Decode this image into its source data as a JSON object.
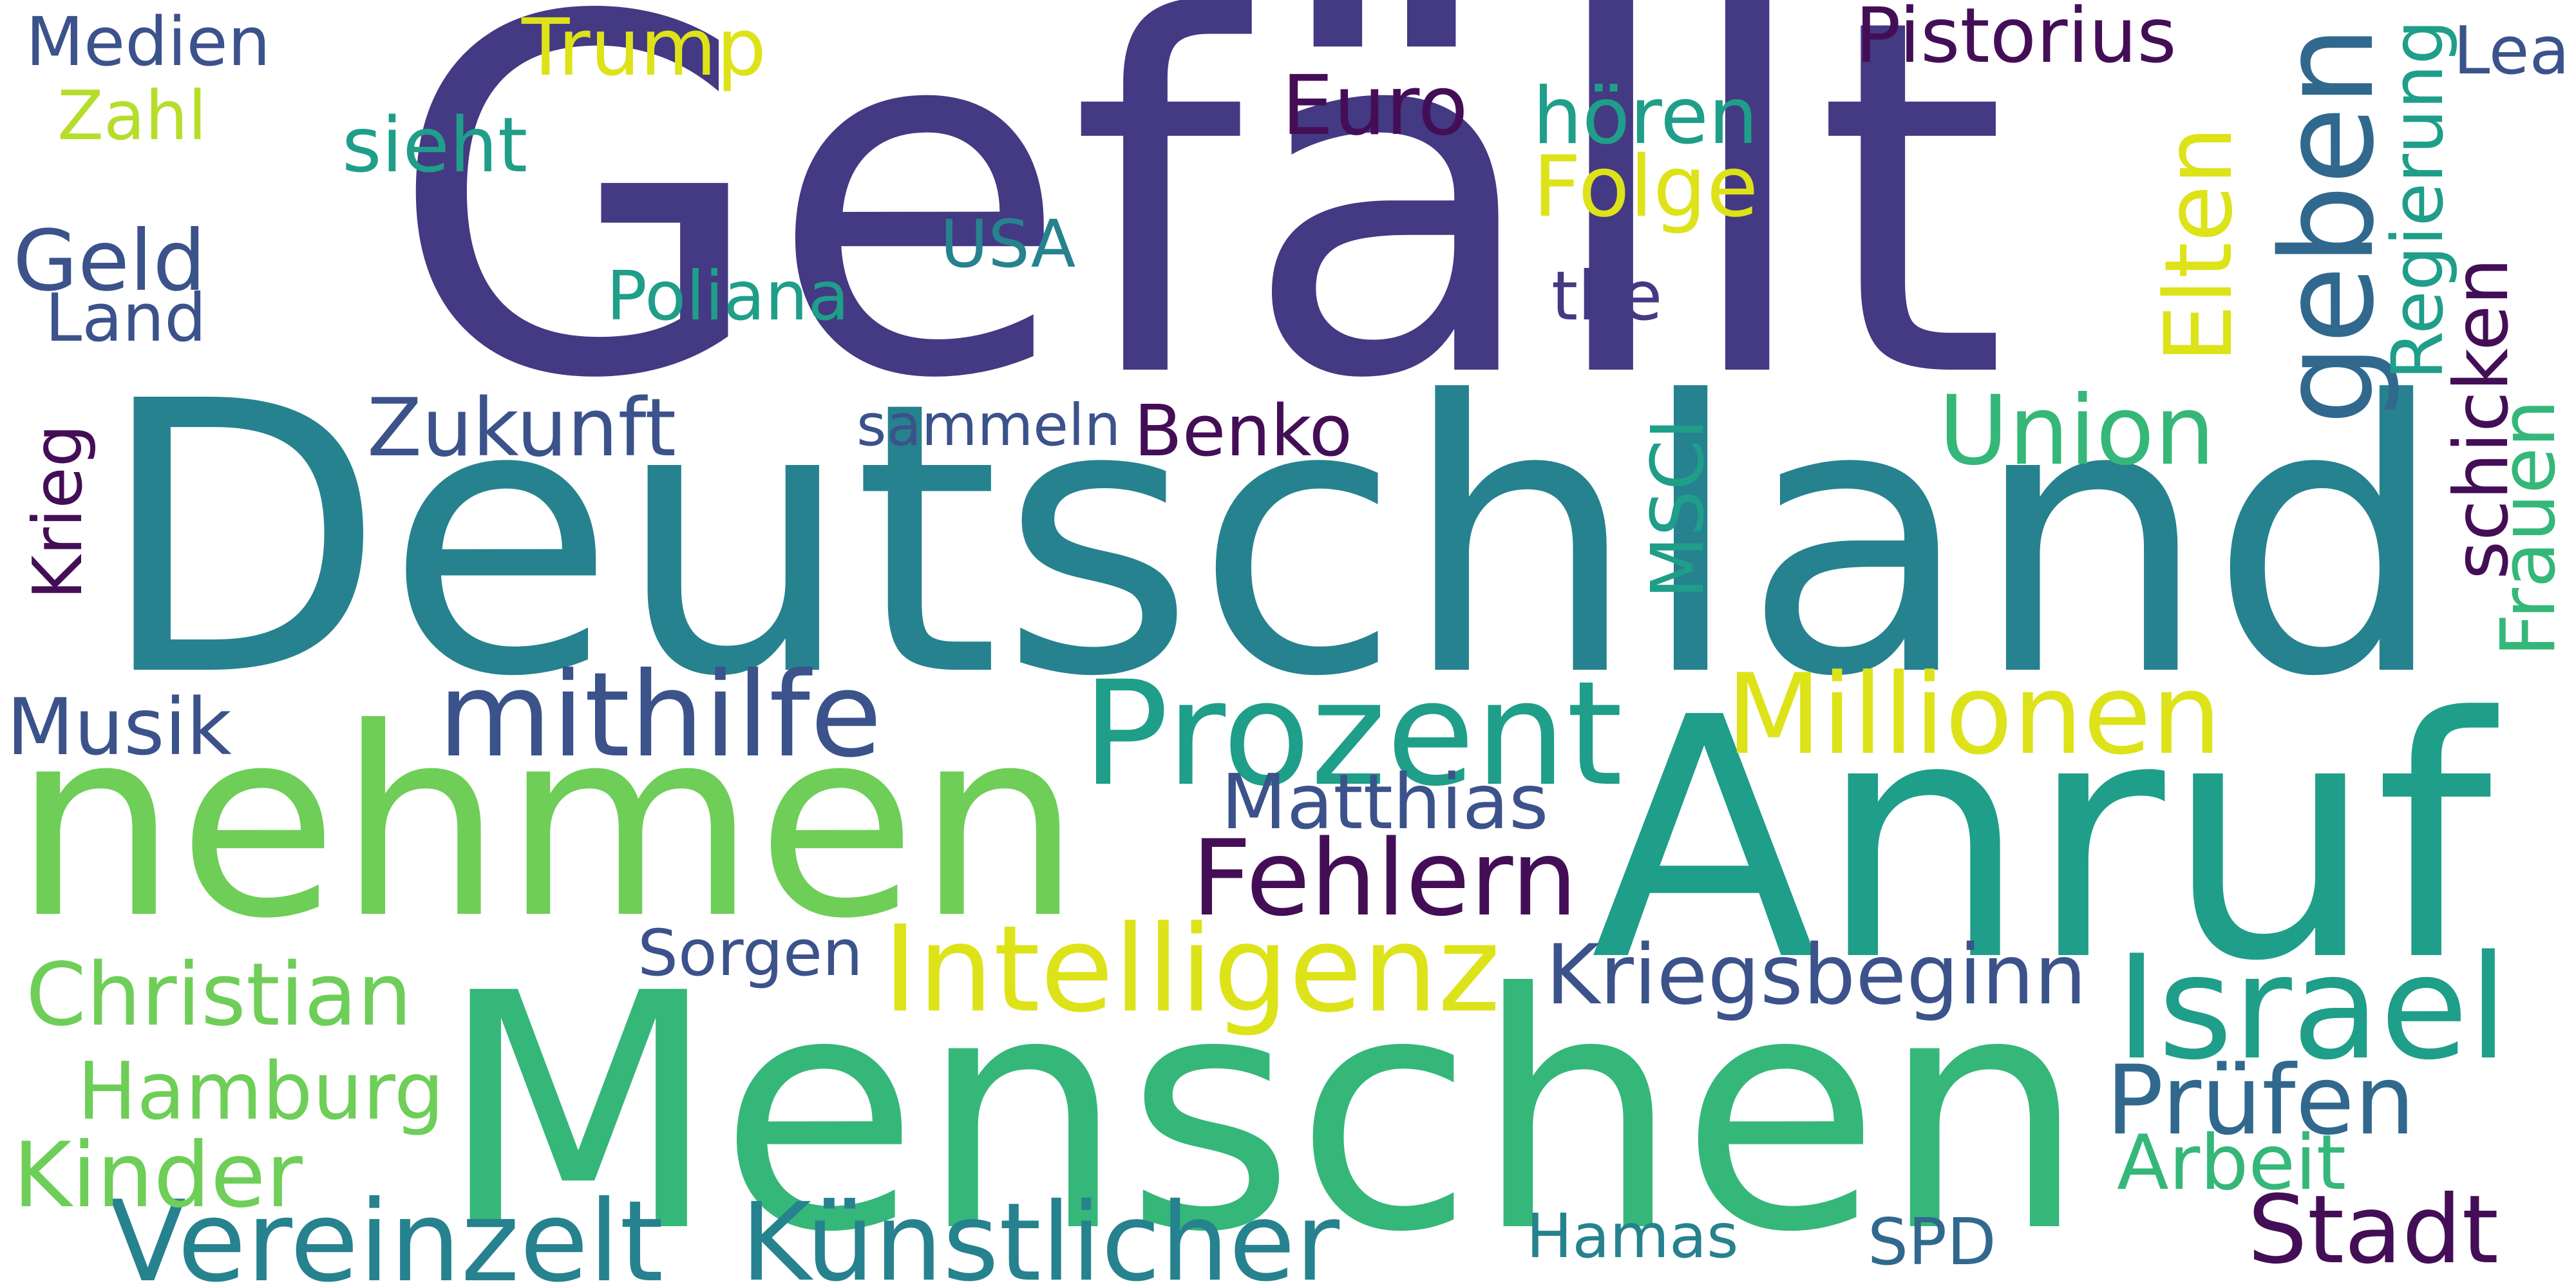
{
  "colors": {
    "background": "#ffffff",
    "purple": "#443983",
    "darkpurple": "#440e57",
    "indigo": "#3b528b",
    "blue": "#31688e",
    "teal": "#26828e",
    "sea": "#1f9e89",
    "green": "#35b779",
    "lightgreen": "#6ece58",
    "lime": "#b5de2b",
    "yellow": "#dde318"
  },
  "words": [
    {
      "text": "Gefällt",
      "weight": 1.0,
      "color": "purple"
    },
    {
      "text": "Deutschland",
      "weight": 0.93,
      "color": "teal"
    },
    {
      "text": "nehmen",
      "weight": 0.76,
      "color": "lightgreen"
    },
    {
      "text": "Menschen",
      "weight": 0.74,
      "color": "green"
    },
    {
      "text": "Anruf",
      "weight": 0.72,
      "color": "sea"
    },
    {
      "text": "geben",
      "weight": 0.4,
      "color": "blue"
    },
    {
      "text": "Prozent",
      "weight": 0.38,
      "color": "sea"
    },
    {
      "text": "Israel",
      "weight": 0.33,
      "color": "sea"
    },
    {
      "text": "Intelligenz",
      "weight": 0.3,
      "color": "yellow"
    },
    {
      "text": "Künstlicher",
      "weight": 0.29,
      "color": "teal"
    },
    {
      "text": "Vereinzelt",
      "weight": 0.29,
      "color": "teal"
    },
    {
      "text": "Millionen",
      "weight": 0.28,
      "color": "yellow"
    },
    {
      "text": "mithilfe",
      "weight": 0.27,
      "color": "indigo"
    },
    {
      "text": "Union",
      "weight": 0.27,
      "color": "green"
    },
    {
      "text": "Fehlern",
      "weight": 0.26,
      "color": "darkpurple"
    },
    {
      "text": "Stadt",
      "weight": 0.26,
      "color": "darkpurple"
    },
    {
      "text": "Hamburg",
      "weight": 0.24,
      "color": "lightgreen"
    },
    {
      "text": "Prüfen",
      "weight": 0.23,
      "color": "blue"
    },
    {
      "text": "Elten",
      "weight": 0.22,
      "color": "yellow"
    },
    {
      "text": "Kinder",
      "weight": 0.21,
      "color": "lightgreen"
    },
    {
      "text": "Kriegsbeginn",
      "weight": 0.21,
      "color": "indigo"
    },
    {
      "text": "Trump",
      "weight": 0.21,
      "color": "yellow"
    },
    {
      "text": "Zukunft",
      "weight": 0.2,
      "color": "indigo"
    },
    {
      "text": "Geld",
      "weight": 0.2,
      "color": "indigo"
    },
    {
      "text": "Euro",
      "weight": 0.2,
      "color": "darkpurple"
    },
    {
      "text": "Christian",
      "weight": 0.19,
      "color": "lightgreen"
    },
    {
      "text": "Benko",
      "weight": 0.19,
      "color": "darkpurple"
    },
    {
      "text": "hören",
      "weight": 0.19,
      "color": "sea"
    },
    {
      "text": "Folge",
      "weight": 0.19,
      "color": "yellow"
    },
    {
      "text": "Musik",
      "weight": 0.19,
      "color": "indigo"
    },
    {
      "text": "USA",
      "weight": 0.19,
      "color": "teal"
    },
    {
      "text": "Hamas",
      "weight": 0.18,
      "color": "teal"
    },
    {
      "text": "SPD",
      "weight": 0.18,
      "color": "blue"
    },
    {
      "text": "Frauen",
      "weight": 0.18,
      "color": "green"
    },
    {
      "text": "Land",
      "weight": 0.17,
      "color": "indigo"
    },
    {
      "text": "Arbeit",
      "weight": 0.17,
      "color": "green"
    },
    {
      "text": "Pistorius",
      "weight": 0.16,
      "color": "darkpurple"
    },
    {
      "text": "Matthias",
      "weight": 0.16,
      "color": "indigo"
    },
    {
      "text": "MSCI",
      "weight": 0.16,
      "color": "sea"
    },
    {
      "text": "Medien",
      "weight": 0.16,
      "color": "indigo"
    },
    {
      "text": "sieht",
      "weight": 0.16,
      "color": "sea"
    },
    {
      "text": "Sorgen",
      "weight": 0.16,
      "color": "indigo"
    },
    {
      "text": "schicken",
      "weight": 0.16,
      "color": "darkpurple"
    },
    {
      "text": "Krieg",
      "weight": 0.15,
      "color": "darkpurple"
    },
    {
      "text": "Poliana",
      "weight": 0.15,
      "color": "sea"
    },
    {
      "text": "the",
      "weight": 0.15,
      "color": "purple"
    },
    {
      "text": "Zahl",
      "weight": 0.15,
      "color": "lime"
    },
    {
      "text": "sammeln",
      "weight": 0.15,
      "color": "indigo"
    },
    {
      "text": "Regierung",
      "weight": 0.14,
      "color": "sea"
    },
    {
      "text": "Lea",
      "weight": 0.14,
      "color": "indigo"
    }
  ]
}
